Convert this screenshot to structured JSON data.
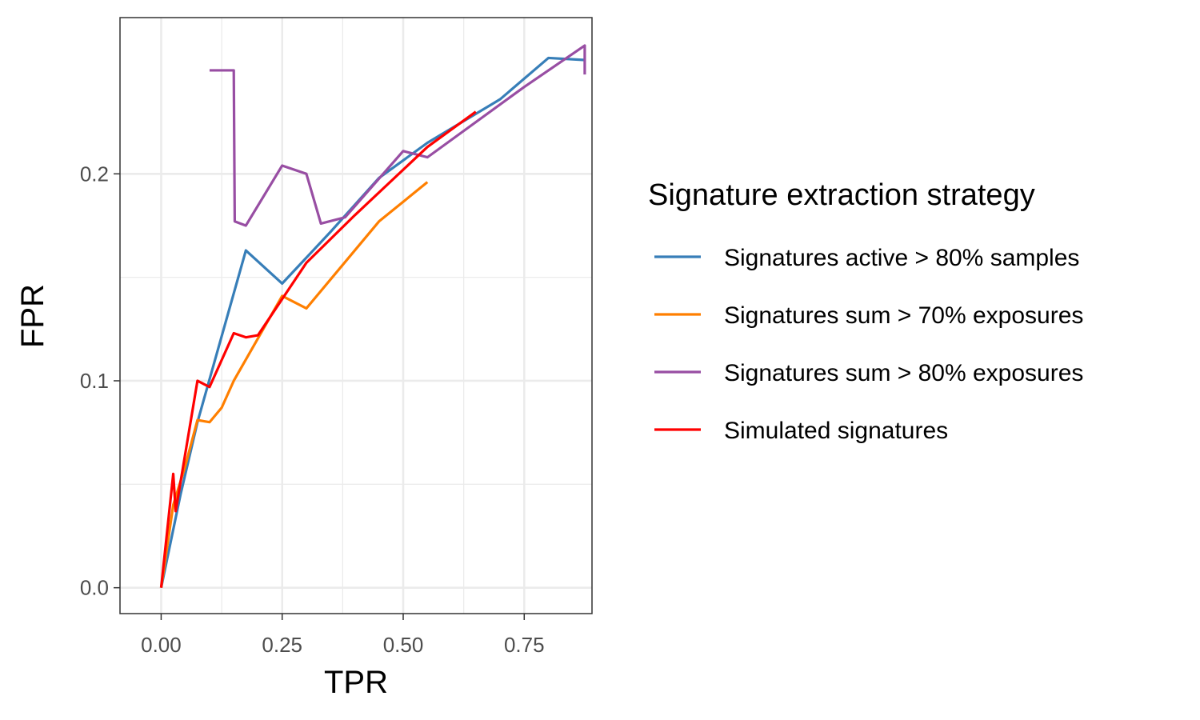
{
  "chart_data": {
    "type": "line",
    "xlabel": "TPR",
    "ylabel": "FPR",
    "xlim": [
      -0.085,
      0.89
    ],
    "ylim": [
      -0.0125,
      0.2755
    ],
    "x_ticks": [
      0.0,
      0.25,
      0.5,
      0.75
    ],
    "x_tick_labels": [
      "0.00",
      "0.25",
      "0.50",
      "0.75"
    ],
    "y_ticks": [
      0.0,
      0.1,
      0.2
    ],
    "y_tick_labels": [
      "0.0",
      "0.1",
      "0.2"
    ],
    "grid": true,
    "legend_position": "right",
    "legend_title": "Signature extraction strategy",
    "series": [
      {
        "name": "Signatures active > 80% samples",
        "color": "#377EB8",
        "points": [
          [
            0.0,
            0.0
          ],
          [
            0.04,
            0.045
          ],
          [
            0.075,
            0.08
          ],
          [
            0.175,
            0.163
          ],
          [
            0.25,
            0.147
          ],
          [
            0.35,
            0.172
          ],
          [
            0.45,
            0.198
          ],
          [
            0.55,
            0.215
          ],
          [
            0.7,
            0.236
          ],
          [
            0.8,
            0.256
          ],
          [
            0.875,
            0.255
          ]
        ]
      },
      {
        "name": "Signatures sum > 70% exposures",
        "color": "#FF7F00",
        "points": [
          [
            0.0,
            0.0
          ],
          [
            0.025,
            0.04
          ],
          [
            0.05,
            0.059
          ],
          [
            0.075,
            0.081
          ],
          [
            0.1,
            0.08
          ],
          [
            0.125,
            0.087
          ],
          [
            0.15,
            0.1
          ],
          [
            0.25,
            0.141
          ],
          [
            0.3,
            0.135
          ],
          [
            0.45,
            0.177
          ],
          [
            0.55,
            0.196
          ]
        ]
      },
      {
        "name": "Signatures sum > 80% exposures",
        "color": "#984EA3",
        "points": [
          [
            0.1,
            0.25
          ],
          [
            0.15,
            0.25
          ],
          [
            0.152,
            0.177
          ],
          [
            0.175,
            0.175
          ],
          [
            0.25,
            0.204
          ],
          [
            0.3,
            0.2
          ],
          [
            0.33,
            0.176
          ],
          [
            0.38,
            0.179
          ],
          [
            0.5,
            0.211
          ],
          [
            0.55,
            0.208
          ],
          [
            0.75,
            0.242
          ],
          [
            0.875,
            0.262
          ],
          [
            0.875,
            0.248
          ]
        ]
      },
      {
        "name": "Simulated signatures",
        "color": "#FF0000",
        "points": [
          [
            0.0,
            0.0
          ],
          [
            0.025,
            0.055
          ],
          [
            0.03,
            0.037
          ],
          [
            0.075,
            0.1
          ],
          [
            0.1,
            0.097
          ],
          [
            0.15,
            0.123
          ],
          [
            0.175,
            0.121
          ],
          [
            0.2,
            0.122
          ],
          [
            0.3,
            0.157
          ],
          [
            0.4,
            0.18
          ],
          [
            0.55,
            0.213
          ],
          [
            0.65,
            0.23
          ]
        ]
      }
    ]
  }
}
